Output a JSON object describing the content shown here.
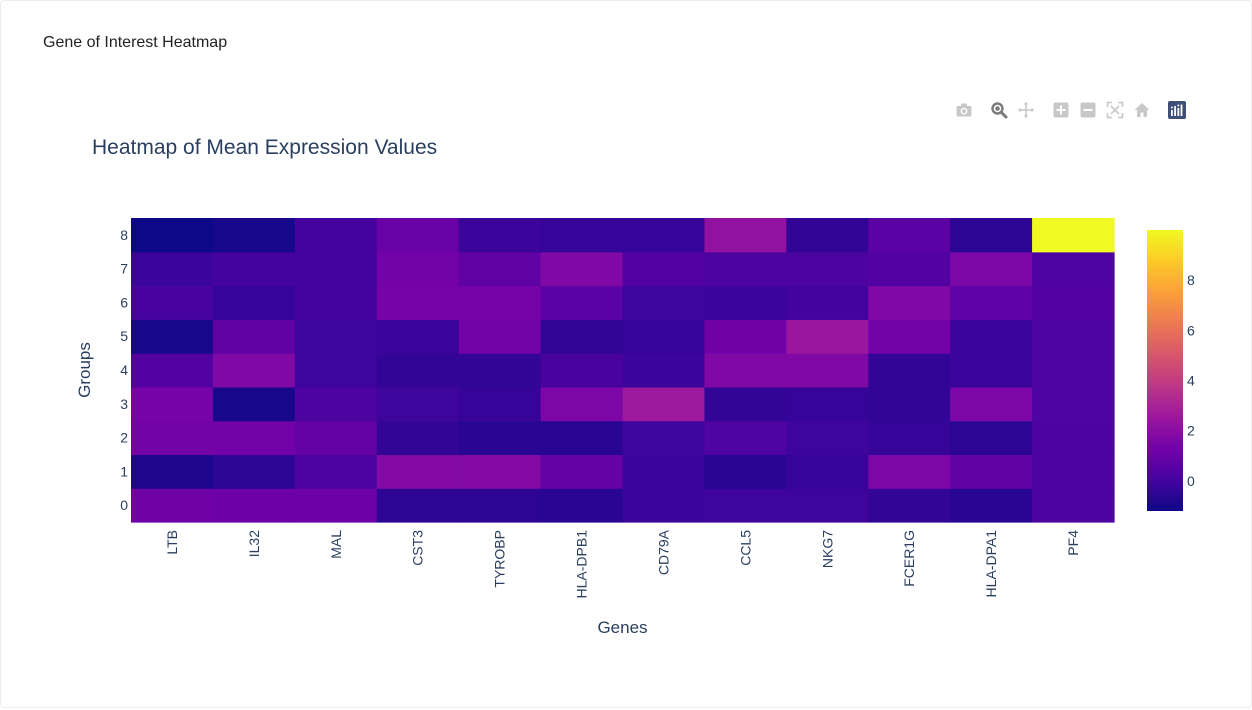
{
  "card": {
    "title": "Gene of Interest Heatmap"
  },
  "modebar": {
    "icons": [
      "camera-icon",
      "zoom-icon",
      "pan-icon",
      "zoom-in-icon",
      "zoom-out-icon",
      "autoscale-icon",
      "reset-axes-icon",
      "plotly-logo-icon"
    ]
  },
  "chart_data": {
    "type": "heatmap",
    "title": "Heatmap of Mean Expression Values",
    "xlabel": "Genes",
    "ylabel": "Groups",
    "x": [
      "LTB",
      "IL32",
      "MAL",
      "CST3",
      "TYROBP",
      "HLA-DPB1",
      "CD79A",
      "CCL5",
      "NKG7",
      "FCER1G",
      "HLA-DPA1",
      "PF4"
    ],
    "y": [
      "0",
      "1",
      "2",
      "3",
      "4",
      "5",
      "6",
      "7",
      "8"
    ],
    "z": [
      [
        1.2,
        1.1,
        1.1,
        -0.5,
        -0.5,
        -0.6,
        -0.2,
        -0.1,
        -0.1,
        -0.4,
        -0.6,
        0.2
      ],
      [
        -0.8,
        -0.5,
        0.2,
        1.8,
        1.8,
        0.9,
        -0.2,
        -0.6,
        -0.3,
        1.6,
        0.8,
        0.2
      ],
      [
        1.3,
        1.3,
        0.9,
        -0.4,
        -0.6,
        -0.6,
        -0.1,
        0.3,
        -0.1,
        -0.3,
        -0.5,
        0.2
      ],
      [
        1.4,
        -1.0,
        0.2,
        -0.1,
        -0.3,
        1.6,
        2.6,
        -0.4,
        -0.3,
        -0.4,
        1.6,
        0.3
      ],
      [
        0.4,
        1.7,
        -0.1,
        -0.4,
        -0.4,
        0.1,
        -0.2,
        1.7,
        1.7,
        -0.4,
        -0.2,
        0.3
      ],
      [
        -1.0,
        0.8,
        -0.1,
        -0.2,
        1.3,
        -0.4,
        -0.3,
        1.2,
        2.5,
        1.3,
        -0.2,
        0.3
      ],
      [
        0.1,
        -0.3,
        0.0,
        1.4,
        1.4,
        0.6,
        -0.1,
        -0.2,
        0.0,
        1.7,
        0.7,
        0.4
      ],
      [
        -0.2,
        0.0,
        0.0,
        1.3,
        0.8,
        1.7,
        0.4,
        0.2,
        0.2,
        0.4,
        1.6,
        0.3
      ],
      [
        -1.2,
        -1.0,
        0.0,
        1.0,
        -0.2,
        -0.3,
        -0.3,
        2.2,
        -0.4,
        0.6,
        -0.5,
        10.0
      ]
    ],
    "zmin": -1.2,
    "zmax": 10.0,
    "colorscale": [
      "#0d0887",
      "#46039f",
      "#7201a8",
      "#9c179e",
      "#bd3786",
      "#d8576b",
      "#ed7953",
      "#fb9f3a",
      "#fdca26",
      "#f0f921"
    ],
    "colorbar_ticks": [
      "0",
      "2",
      "4",
      "6",
      "8"
    ]
  }
}
